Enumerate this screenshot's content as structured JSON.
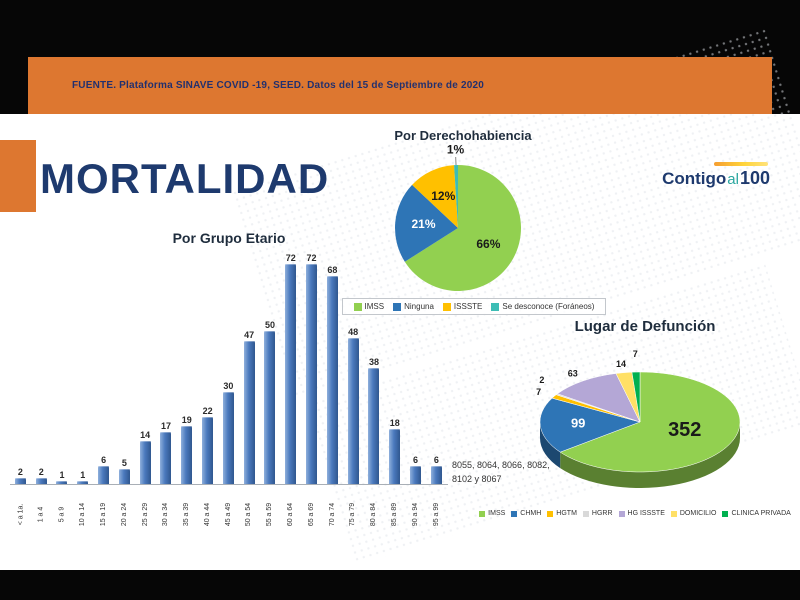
{
  "slide": {
    "source_text": "FUENTE. Plataforma SINAVE COVID -19, SEED. Datos del 15 de Septiembre de 2020",
    "title": "MORTALIDAD",
    "logo": {
      "part1": "Contigo",
      "part2": "al",
      "part3": "100"
    },
    "footnote_line1": "8055, 8064, 8066, 8082,",
    "footnote_line2": "8102 y 8067"
  },
  "colors": {
    "accent_orange": "#dd7730",
    "navy": "#1e3a6e",
    "bar_blue": "#4a79bd"
  },
  "chart_data": [
    {
      "id": "grupo_etario",
      "type": "bar",
      "title": "Por Grupo Etario",
      "categories": [
        "< a 1a.",
        "1 a 4",
        "5 a 9",
        "10 a 14",
        "15 a 19",
        "20 a 24",
        "25 a 29",
        "30 a 34",
        "35 a 39",
        "40 a 44",
        "45 a 49",
        "50 a 54",
        "55 a 59",
        "60 a 64",
        "65 a 69",
        "70 a 74",
        "75 a 79",
        "80 a 84",
        "85 a 89",
        "90 a 94",
        "95 a 99"
      ],
      "values": [
        2,
        2,
        1,
        1,
        6,
        5,
        14,
        17,
        19,
        22,
        30,
        47,
        50,
        72,
        72,
        68,
        48,
        38,
        18,
        6,
        6
      ],
      "xlabel": "",
      "ylabel": "",
      "ylim": [
        0,
        76
      ],
      "grid": false,
      "bar_color": "#4a79bd"
    },
    {
      "id": "derechohabiencia",
      "type": "pie",
      "title": "Por Derechohabiencia",
      "labels": [
        "IMSS",
        "Ninguna",
        "ISSSTE",
        "Se desconoce (Foráneos)"
      ],
      "values": [
        66,
        21,
        12,
        1
      ],
      "value_labels": [
        "66%",
        "21%",
        "12%",
        "1%"
      ],
      "colors": [
        "#92d050",
        "#2e75b6",
        "#ffc000",
        "#3dbdb5"
      ],
      "label_colors": [
        "#1a1a1a",
        "#ffffff",
        "#1a1a1a",
        "#1a1a1a"
      ],
      "legend_position": "bottom"
    },
    {
      "id": "lugar_defuncion",
      "type": "pie",
      "style": "3d",
      "title": "Lugar de Defunción",
      "labels": [
        "IMSS",
        "CHMH",
        "HGTM",
        "HGRR",
        "HG ISSSTE",
        "DOMICILIO",
        "CLINICA PRIVADA"
      ],
      "values": [
        352,
        99,
        7,
        2,
        63,
        14,
        7
      ],
      "colors": [
        "#92d050",
        "#2e75b6",
        "#ffc000",
        "#d9d9d9",
        "#b4a7d6",
        "#ffe066",
        "#00b050"
      ],
      "label_colors": [
        "#1a1a1a",
        "#ffffff",
        "#1a1a1a",
        "#1a1a1a",
        "#1a1a1a",
        "#1a1a1a",
        "#1a1a1a"
      ],
      "legend_position": "bottom"
    }
  ]
}
